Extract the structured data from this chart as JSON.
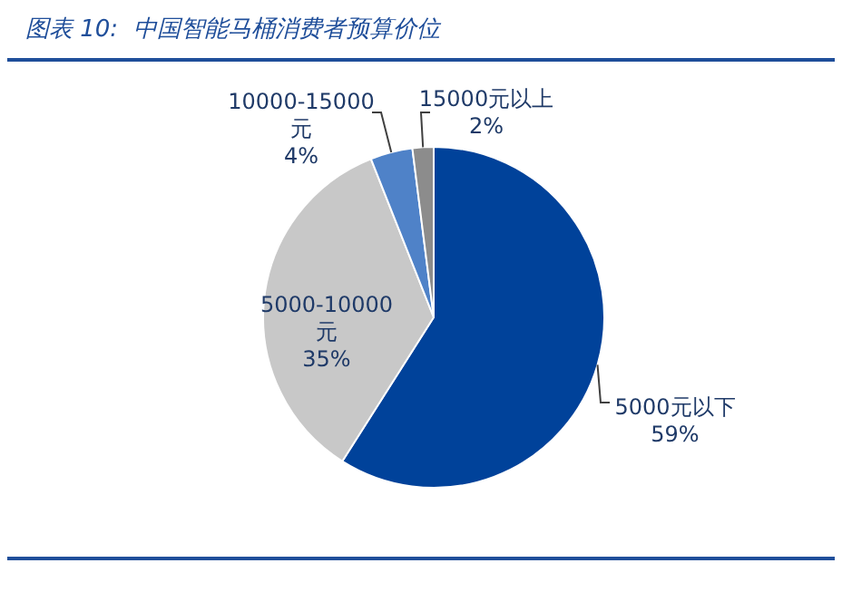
{
  "chart_data": {
    "type": "pie",
    "title": "图表 10:  中国智能马桶消费者预算价位",
    "categories": [
      "5000元以下",
      "5000-10000元",
      "10000-15000元",
      "15000元以上"
    ],
    "values": [
      59,
      35,
      4,
      2
    ],
    "colors": [
      "#00429a",
      "#c8c8c8",
      "#4f82c8",
      "#8c8c8c"
    ],
    "value_labels": [
      "59%",
      "35%",
      "4%",
      "2%"
    ]
  }
}
